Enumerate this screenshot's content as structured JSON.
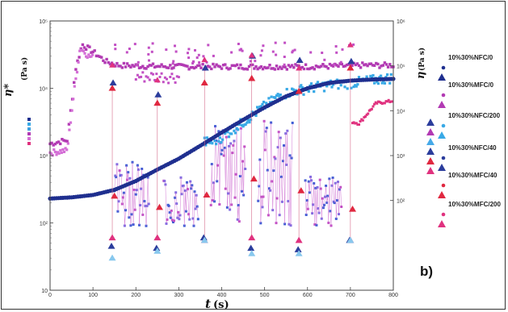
{
  "chart_data": {
    "type": "scatter",
    "title": "",
    "panel_label": "b)",
    "x_axis": {
      "label_var": "t",
      "label_unit": "(s)",
      "range": [
        0,
        800
      ],
      "ticks": [
        "0",
        "100",
        "200",
        "300",
        "400",
        "500",
        "600",
        "700",
        "800"
      ]
    },
    "y_left": {
      "label_var": "η*",
      "label_unit": "(Pa s)",
      "scale": "log",
      "range": [
        10,
        100000
      ],
      "ticks": [
        "10",
        "10²",
        "10³",
        "10⁴",
        "10⁵"
      ]
    },
    "y_right": {
      "label_var": "η",
      "label_unit": "(Pa s)",
      "scale": "log",
      "range": [
        1,
        1000000
      ],
      "ticks": [
        "10²",
        "10³",
        "10⁴",
        "10⁵",
        "10⁶"
      ]
    },
    "grid": false,
    "legend_position": "right",
    "series": [
      {
        "name": "10%30%NFC/0",
        "color": "#1f2f8f",
        "complex": "dark blue circles: sigmoidal rise from ~230 Pa s at t=0 to ~13000 Pa s at t=800"
      },
      {
        "name": "10%30%MFC/0",
        "color": "#b23ab3"
      },
      {
        "name": "10%30%NFC/200",
        "color": "#38a9e6"
      },
      {
        "name": "10%30%NFC/40",
        "color": "#2b3d9c"
      },
      {
        "name": "10%30%MFC/40",
        "color": "#e02840"
      },
      {
        "name": "10%30%MFC/200",
        "color": "#e0327f"
      }
    ],
    "complex_viscosity_points": {
      "NFC0": [
        [
          0,
          230
        ],
        [
          50,
          240
        ],
        [
          100,
          260
        ],
        [
          150,
          310
        ],
        [
          200,
          420
        ],
        [
          250,
          620
        ],
        [
          300,
          900
        ],
        [
          350,
          1400
        ],
        [
          400,
          2200
        ],
        [
          450,
          3400
        ],
        [
          500,
          5200
        ],
        [
          550,
          7600
        ],
        [
          600,
          10000
        ],
        [
          650,
          12000
        ],
        [
          700,
          13000
        ],
        [
          750,
          13500
        ],
        [
          800,
          13800
        ]
      ],
      "NFC200": [
        [
          380,
          1600
        ],
        [
          420,
          2300
        ],
        [
          460,
          3500
        ],
        [
          500,
          5500
        ],
        [
          540,
          8200
        ],
        [
          580,
          9500
        ],
        [
          620,
          10500
        ],
        [
          660,
          11500
        ],
        [
          700,
          12000
        ],
        [
          740,
          13000
        ],
        [
          780,
          14000
        ],
        [
          800,
          14500
        ]
      ],
      "MFC0": [
        [
          0,
          1500
        ],
        [
          40,
          1700
        ],
        [
          60,
          20000
        ],
        [
          75,
          45000
        ],
        [
          100,
          35000
        ],
        [
          130,
          25000
        ],
        [
          160,
          22000
        ],
        [
          200,
          21500
        ],
        [
          300,
          21000
        ],
        [
          400,
          21000
        ],
        [
          500,
          21000
        ],
        [
          600,
          21000
        ],
        [
          700,
          21500
        ],
        [
          720,
          22000
        ],
        [
          800,
          22000
        ]
      ],
      "MFC200": [
        [
          0,
          1100
        ],
        [
          40,
          1200
        ],
        [
          55,
          8000
        ],
        [
          70,
          40000
        ],
        [
          90,
          30000
        ],
        [
          720,
          3000
        ],
        [
          760,
          6000
        ],
        [
          800,
          6500
        ]
      ]
    },
    "steady_viscosity_peaks": {
      "times": [
        145,
        250,
        360,
        470,
        580,
        700
      ],
      "red_tops": [
        10000,
        6000,
        12000,
        14000,
        9000,
        20000
      ],
      "blue_tops": [
        12000,
        8000,
        20000,
        30000,
        26000,
        25000
      ],
      "red_bottoms": [
        60,
        60,
        55,
        60,
        55,
        55
      ],
      "blue_bottoms": [
        45,
        42,
        60,
        42,
        40,
        55
      ],
      "light_bottoms": [
        30,
        38,
        55,
        35,
        35,
        55
      ]
    },
    "oscillating_clusters": [
      {
        "x0": 150,
        "x1": 230,
        "lo": 90,
        "hi": 800
      },
      {
        "x0": 265,
        "x1": 345,
        "lo": 90,
        "hi": 600
      },
      {
        "x0": 375,
        "x1": 455,
        "lo": 100,
        "hi": 3000
      },
      {
        "x0": 485,
        "x1": 565,
        "lo": 90,
        "hi": 3500
      },
      {
        "x0": 595,
        "x1": 680,
        "lo": 90,
        "hi": 500
      }
    ]
  }
}
